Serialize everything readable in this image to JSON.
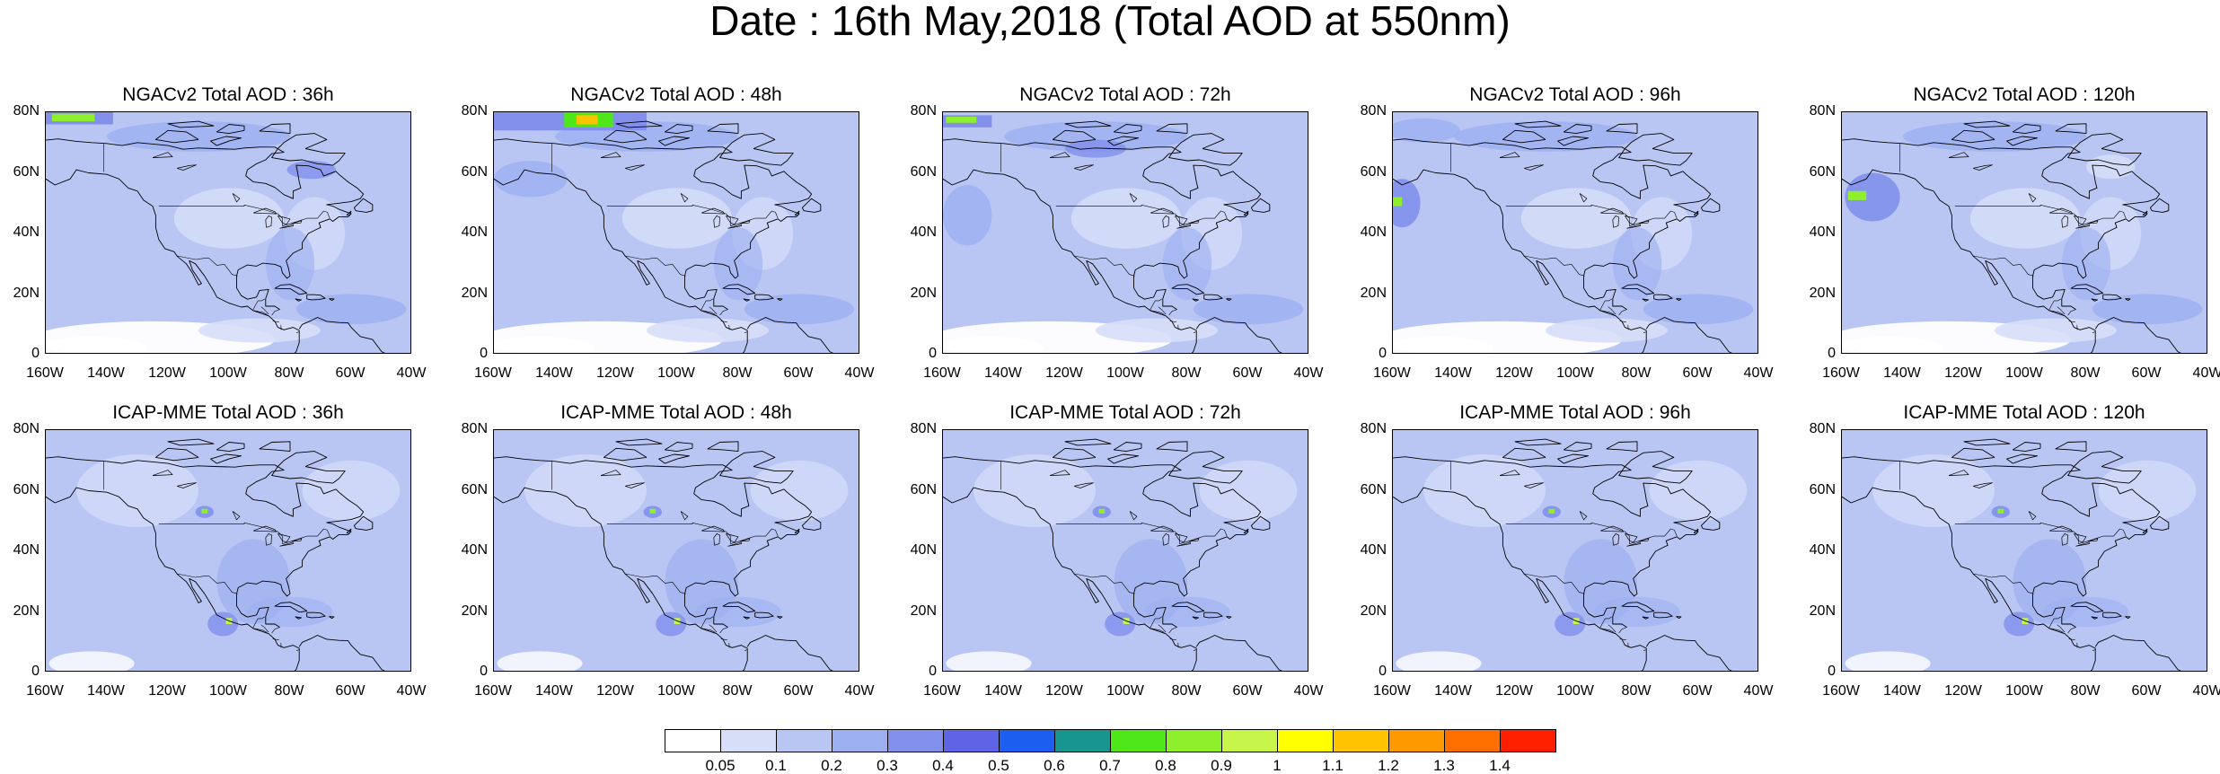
{
  "title": "Date : 16th May,2018 (Total AOD at 550nm)",
  "axes": {
    "y_ticks": [
      "80N",
      "60N",
      "40N",
      "20N",
      "0"
    ],
    "x_ticks": [
      "160W",
      "140W",
      "120W",
      "100W",
      "80W",
      "60W",
      "40W"
    ]
  },
  "panels": [
    {
      "title": "NGACv2 Total AOD : 36h",
      "model": "NGACv2",
      "lead": "36h"
    },
    {
      "title": "NGACv2 Total AOD : 48h",
      "model": "NGACv2",
      "lead": "48h"
    },
    {
      "title": "NGACv2 Total AOD : 72h",
      "model": "NGACv2",
      "lead": "72h"
    },
    {
      "title": "NGACv2 Total AOD : 96h",
      "model": "NGACv2",
      "lead": "96h"
    },
    {
      "title": "NGACv2 Total AOD : 120h",
      "model": "NGACv2",
      "lead": "120h"
    },
    {
      "title": "ICAP-MME Total AOD : 36h",
      "model": "ICAP-MME",
      "lead": "36h"
    },
    {
      "title": "ICAP-MME Total AOD : 48h",
      "model": "ICAP-MME",
      "lead": "48h"
    },
    {
      "title": "ICAP-MME Total AOD : 72h",
      "model": "ICAP-MME",
      "lead": "72h"
    },
    {
      "title": "ICAP-MME Total AOD : 96h",
      "model": "ICAP-MME",
      "lead": "96h"
    },
    {
      "title": "ICAP-MME Total AOD : 120h",
      "model": "ICAP-MME",
      "lead": "120h"
    }
  ],
  "colorbar": {
    "labels": [
      "0.05",
      "0.1",
      "0.2",
      "0.3",
      "0.4",
      "0.5",
      "0.6",
      "0.7",
      "0.8",
      "0.9",
      "1",
      "1.1",
      "1.2",
      "1.3",
      "1.4"
    ],
    "colors": [
      "#ffffff",
      "#d7def8",
      "#b9c6f4",
      "#9caff0",
      "#8290ec",
      "#5f64e6",
      "#1c5ef0",
      "#17968f",
      "#4fe61a",
      "#8ef02c",
      "#c7f54a",
      "#ffff00",
      "#ffc300",
      "#ff9900",
      "#ff6f00",
      "#ff2000"
    ]
  },
  "chart_data": {
    "type": "heatmap",
    "title": "Date : 16th May,2018 (Total AOD at 550nm)",
    "variable": "Total AOD at 550nm",
    "lat_range": [
      0,
      80
    ],
    "lon_range": [
      -160,
      -40
    ],
    "levels": [
      0.05,
      0.1,
      0.2,
      0.3,
      0.4,
      0.5,
      0.6,
      0.7,
      0.8,
      0.9,
      1,
      1.1,
      1.2,
      1.3,
      1.4
    ]
  }
}
